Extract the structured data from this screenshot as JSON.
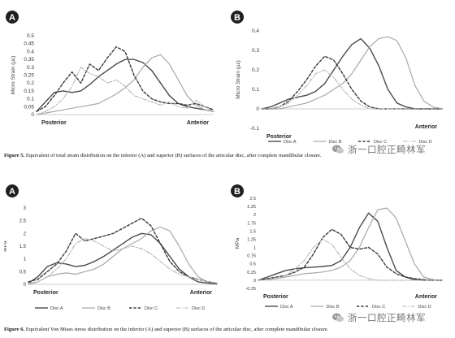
{
  "figure5": {
    "caption_label": "Figure 5.",
    "caption_text": "Equivalent of total strain distribution on the inferior (A) and superior (B) surfaces of the articular disc, after complete mandibular closure."
  },
  "figure6": {
    "caption_label": "Figure 6.",
    "caption_text": "Equivalent Von Mises stress distribution on the inferior (A) and superior (B) surfaces of the articular disc, after complete mandibular closure."
  },
  "watermark": {
    "text": "浙一口腔正畸林军",
    "icon": "wechat-logo-icon"
  },
  "series_styles": [
    {
      "name": "Disc A",
      "color": "#4a4a4a",
      "dash": "",
      "width": 1.4
    },
    {
      "name": "Disc B",
      "color": "#a8a8a8",
      "dash": "",
      "width": 1.2
    },
    {
      "name": "Disc C",
      "color": "#3a3a3a",
      "dash": "3.2,2.2",
      "width": 1.4
    },
    {
      "name": "Disc D",
      "color": "#b5b5b5",
      "dash": "5,2,1.2,2",
      "width": 1.1
    }
  ],
  "chart_data": [
    {
      "id": "fig5a",
      "panel_label": "A",
      "type": "line",
      "ylabel": "Micro Strain (µε)",
      "ylim": [
        0,
        0.5
      ],
      "yticks": [
        "0",
        "0.05",
        "0.1",
        "0.15",
        "0.2",
        "0.25",
        "0.3",
        "0.35",
        "0.4",
        "0.45",
        "0.5"
      ],
      "x_start_label": "Posterior",
      "x_end_label": "Anterior",
      "x_points": 21,
      "series": [
        {
          "name": "Disc A",
          "values": [
            0.02,
            0.08,
            0.14,
            0.15,
            0.14,
            0.15,
            0.19,
            0.24,
            0.28,
            0.32,
            0.35,
            0.35,
            0.33,
            0.28,
            0.2,
            0.12,
            0.07,
            0.05,
            0.04,
            0.03,
            0.02
          ]
        },
        {
          "name": "Disc B",
          "values": [
            0.0,
            0.01,
            0.02,
            0.03,
            0.04,
            0.05,
            0.06,
            0.07,
            0.1,
            0.13,
            0.17,
            0.22,
            0.3,
            0.36,
            0.38,
            0.32,
            0.22,
            0.12,
            0.06,
            0.03,
            0.02
          ]
        },
        {
          "name": "Disc C",
          "values": [
            0.02,
            0.05,
            0.12,
            0.2,
            0.27,
            0.2,
            0.32,
            0.28,
            0.36,
            0.43,
            0.4,
            0.25,
            0.15,
            0.1,
            0.08,
            0.07,
            0.07,
            0.06,
            0.07,
            0.05,
            0.03
          ]
        },
        {
          "name": "Disc D",
          "values": [
            0.0,
            0.02,
            0.05,
            0.1,
            0.18,
            0.3,
            0.26,
            0.24,
            0.2,
            0.22,
            0.18,
            0.12,
            0.1,
            0.08,
            0.06,
            0.08,
            0.05,
            0.04,
            0.09,
            0.05,
            0.02
          ]
        }
      ]
    },
    {
      "id": "fig5b",
      "panel_label": "B",
      "type": "line",
      "ylabel": "Micro Strain (µε)",
      "ylim": [
        -0.1,
        0.4
      ],
      "yticks": [
        "-0.1",
        "0",
        "0.1",
        "0.2",
        "0.3",
        "0.4"
      ],
      "x_start_label": "Posterior",
      "x_end_label": "Anterior",
      "x_points": 21,
      "series": [
        {
          "name": "Disc A",
          "values": [
            0.0,
            0.01,
            0.03,
            0.05,
            0.06,
            0.07,
            0.09,
            0.13,
            0.2,
            0.27,
            0.33,
            0.36,
            0.31,
            0.22,
            0.1,
            0.03,
            0.01,
            0.0,
            0.0,
            0.0,
            0.0
          ]
        },
        {
          "name": "Disc B",
          "values": [
            0.0,
            0.0,
            0.0,
            0.01,
            0.02,
            0.03,
            0.05,
            0.07,
            0.1,
            0.13,
            0.18,
            0.25,
            0.32,
            0.36,
            0.37,
            0.35,
            0.26,
            0.12,
            0.04,
            0.01,
            0.0
          ]
        },
        {
          "name": "Disc C",
          "values": [
            0.0,
            0.0,
            0.01,
            0.04,
            0.09,
            0.15,
            0.22,
            0.27,
            0.25,
            0.18,
            0.1,
            0.04,
            0.01,
            0.0,
            0.0,
            0.0,
            0.0,
            0.0,
            0.0,
            0.0,
            0.0
          ]
        },
        {
          "name": "Disc D",
          "values": [
            0.0,
            0.0,
            0.01,
            0.03,
            0.07,
            0.12,
            0.18,
            0.2,
            0.16,
            0.1,
            0.05,
            0.02,
            0.0,
            0.0,
            0.0,
            0.0,
            0.0,
            0.0,
            0.0,
            0.0,
            0.0
          ]
        }
      ],
      "legend": [
        "Disc A",
        "Disc B",
        "Disc C",
        "Disc D"
      ]
    },
    {
      "id": "fig6a",
      "panel_label": "A",
      "type": "line",
      "ylabel": "MPa",
      "ylim": [
        0,
        3
      ],
      "yticks": [
        "0",
        "0.5",
        "1",
        "1.5",
        "2",
        "2.5",
        "3"
      ],
      "x_start_label": "Posterior",
      "x_end_label": "Anterior",
      "x_points": 21,
      "series": [
        {
          "name": "Disc A",
          "values": [
            0.05,
            0.3,
            0.7,
            0.85,
            0.8,
            0.7,
            0.75,
            0.9,
            1.1,
            1.35,
            1.6,
            1.85,
            2.0,
            1.95,
            1.6,
            1.1,
            0.6,
            0.3,
            0.1,
            0.05,
            0.02
          ]
        },
        {
          "name": "Disc B",
          "values": [
            0.0,
            0.1,
            0.3,
            0.4,
            0.45,
            0.4,
            0.5,
            0.6,
            0.8,
            1.1,
            1.4,
            1.6,
            1.8,
            2.1,
            2.25,
            2.1,
            1.5,
            0.8,
            0.3,
            0.1,
            0.05
          ]
        },
        {
          "name": "Disc C",
          "values": [
            0.1,
            0.2,
            0.5,
            0.8,
            1.3,
            2.0,
            1.7,
            1.8,
            1.9,
            2.0,
            2.2,
            2.4,
            2.6,
            2.3,
            1.6,
            0.9,
            0.5,
            0.3,
            0.2,
            0.1,
            0.05
          ]
        },
        {
          "name": "Disc D",
          "values": [
            0.05,
            0.1,
            0.3,
            0.6,
            1.0,
            1.6,
            1.8,
            1.7,
            1.5,
            1.3,
            1.4,
            1.5,
            1.4,
            1.2,
            0.9,
            0.6,
            0.4,
            0.3,
            0.2,
            0.1,
            0.05
          ]
        }
      ],
      "legend": [
        "Disc A",
        "Disc B",
        "Disc C",
        "Disc D"
      ]
    },
    {
      "id": "fig6b",
      "panel_label": "B",
      "type": "line",
      "ylabel": "MPa",
      "ylim": [
        -0.25,
        2.5
      ],
      "yticks": [
        "-0.25",
        "0",
        "0.25",
        "0.5",
        "0.75",
        "1",
        "1.25",
        "1.5",
        "1.75",
        "2",
        "2.25",
        "2.5"
      ],
      "x_start_label": "Posterior",
      "x_end_label": "Anterior",
      "x_points": 21,
      "series": [
        {
          "name": "Disc A",
          "values": [
            0.0,
            0.1,
            0.2,
            0.3,
            0.35,
            0.38,
            0.4,
            0.42,
            0.45,
            0.6,
            1.0,
            1.6,
            2.05,
            1.8,
            1.0,
            0.3,
            0.1,
            0.02,
            0.0,
            0.0,
            0.0
          ]
        },
        {
          "name": "Disc B",
          "values": [
            0.0,
            0.02,
            0.05,
            0.1,
            0.15,
            0.2,
            0.22,
            0.25,
            0.3,
            0.4,
            0.6,
            1.0,
            1.6,
            2.15,
            2.2,
            1.9,
            1.2,
            0.5,
            0.1,
            0.02,
            0.0
          ]
        },
        {
          "name": "Disc C",
          "values": [
            0.0,
            0.05,
            0.1,
            0.15,
            0.25,
            0.4,
            0.8,
            1.3,
            1.55,
            1.4,
            1.0,
            0.95,
            1.0,
            0.8,
            0.4,
            0.2,
            0.1,
            0.05,
            0.02,
            0.0,
            0.0
          ]
        },
        {
          "name": "Disc D",
          "values": [
            0.0,
            0.02,
            0.05,
            0.15,
            0.35,
            0.6,
            1.0,
            1.25,
            1.1,
            0.7,
            0.35,
            0.15,
            0.05,
            0.0,
            0.0,
            0.0,
            0.0,
            0.0,
            0.0,
            0.0,
            0.0
          ]
        }
      ],
      "legend": [
        "Disc A",
        "Disc B",
        "Disc C",
        "Disc D"
      ]
    }
  ]
}
